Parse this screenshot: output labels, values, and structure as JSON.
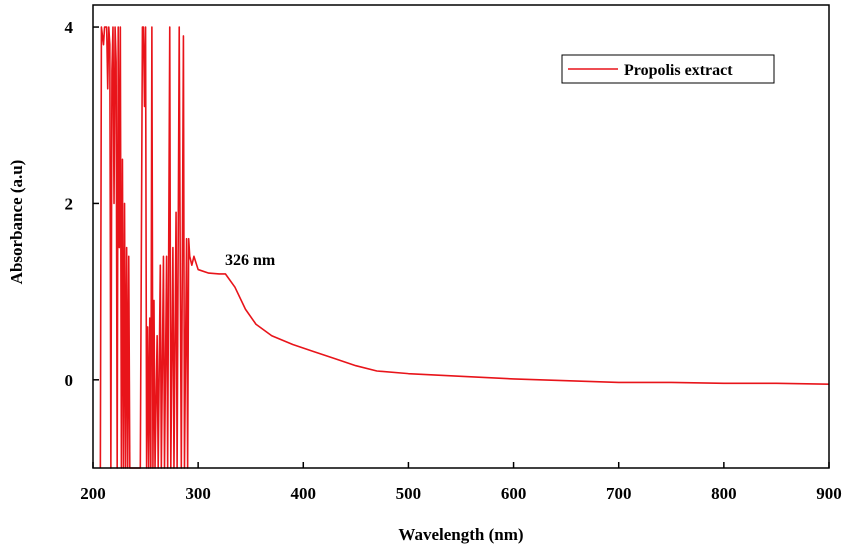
{
  "chart_data": {
    "type": "line",
    "xlabel": "Wavelength (nm)",
    "ylabel": "Absorbance (a.u)",
    "annotation": "326 nm",
    "legend": "upper right",
    "xlim": [
      200,
      900
    ],
    "xticks": [
      200,
      300,
      400,
      500,
      600,
      700,
      800,
      900
    ],
    "ylim": [
      -1,
      4.25
    ],
    "yticks": [
      0,
      2,
      4
    ],
    "x": [
      207,
      208,
      210,
      211,
      213,
      214,
      215,
      216,
      217,
      218,
      219,
      220,
      221,
      222,
      223,
      224,
      225,
      226,
      227,
      228,
      229,
      230,
      231,
      232,
      233,
      234,
      235,
      240,
      245,
      247,
      248,
      249,
      250,
      251,
      252,
      253,
      254,
      255,
      256,
      257,
      258,
      259,
      261,
      262,
      264,
      265,
      267,
      268,
      270,
      271,
      273,
      274,
      276,
      277,
      279,
      280,
      282,
      283,
      284,
      286,
      287,
      289,
      290,
      291,
      292,
      294,
      296,
      300,
      310,
      320,
      326,
      335,
      345,
      355,
      370,
      390,
      410,
      430,
      450,
      470,
      500,
      550,
      600,
      650,
      700,
      750,
      800,
      850,
      900
    ],
    "series": [
      {
        "name": "Propolis extract",
        "color": "#e8141a",
        "values": [
          -1,
          4,
          3.8,
          4,
          4,
          3.3,
          4,
          3.8,
          -1,
          3.5,
          4,
          2,
          4,
          3.6,
          -1,
          4,
          1.5,
          4,
          -1,
          2.5,
          -1,
          2,
          -1,
          1.5,
          -1,
          1.4,
          -1,
          -1,
          -1,
          4,
          4,
          3.1,
          4,
          -1,
          0.6,
          -1,
          0.7,
          -1,
          4,
          -1,
          0.9,
          -1,
          0.5,
          -1,
          1.3,
          -1,
          1.4,
          -1,
          1.4,
          -1,
          4,
          -1,
          1.5,
          -1,
          1.9,
          -1,
          4,
          1.2,
          -1,
          3.9,
          -1,
          1.6,
          -1,
          1.6,
          1.4,
          1.3,
          1.4,
          1.25,
          1.21,
          1.2,
          1.2,
          1.05,
          0.8,
          0.63,
          0.5,
          0.4,
          0.32,
          0.24,
          0.16,
          0.1,
          0.07,
          0.04,
          0.01,
          -0.01,
          -0.03,
          -0.03,
          -0.04,
          -0.04,
          -0.05
        ]
      }
    ]
  }
}
